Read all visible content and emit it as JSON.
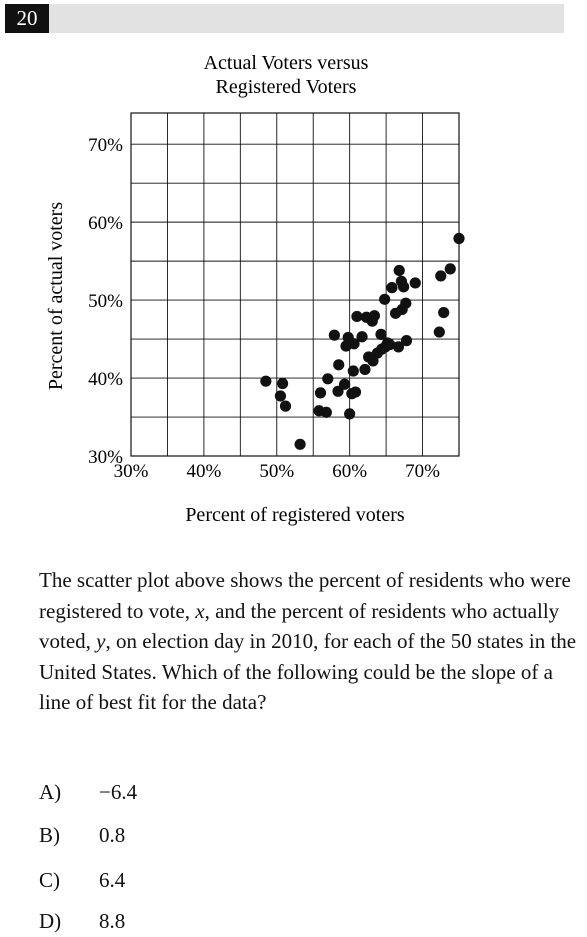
{
  "question_number": "20",
  "chart_data": {
    "type": "scatter",
    "title_lines": [
      "Actual Voters versus",
      "Registered Voters"
    ],
    "xlabel": "Percent of registered voters",
    "ylabel": "Percent of actual voters",
    "xlim": [
      30,
      75
    ],
    "ylim": [
      30,
      74
    ],
    "x_ticks": [
      30,
      40,
      50,
      60,
      70
    ],
    "x_tick_labels": [
      "30%",
      "40%",
      "50%",
      "60%",
      "70%"
    ],
    "y_ticks": [
      30,
      40,
      50,
      60,
      70
    ],
    "y_tick_labels": [
      "30%",
      "40%",
      "50%",
      "60%",
      "70%"
    ],
    "grid": true,
    "points": [
      [
        48.5,
        39.6
      ],
      [
        50.5,
        37.7
      ],
      [
        50.8,
        39.3
      ],
      [
        51.2,
        36.4
      ],
      [
        53.2,
        31.5
      ],
      [
        55.8,
        35.8
      ],
      [
        56.0,
        38.1
      ],
      [
        56.8,
        35.6
      ],
      [
        57.0,
        39.9
      ],
      [
        57.9,
        45.5
      ],
      [
        58.4,
        38.3
      ],
      [
        58.5,
        41.7
      ],
      [
        59.3,
        39.2
      ],
      [
        59.5,
        44.1
      ],
      [
        59.8,
        45.2
      ],
      [
        60.0,
        35.4
      ],
      [
        60.3,
        38.0
      ],
      [
        60.5,
        40.9
      ],
      [
        60.6,
        44.4
      ],
      [
        60.8,
        38.2
      ],
      [
        61.0,
        47.9
      ],
      [
        61.7,
        45.3
      ],
      [
        62.1,
        41.1
      ],
      [
        62.3,
        47.8
      ],
      [
        62.6,
        42.7
      ],
      [
        63.1,
        47.3
      ],
      [
        63.2,
        42.2
      ],
      [
        63.4,
        48.0
      ],
      [
        63.8,
        43.2
      ],
      [
        64.3,
        45.6
      ],
      [
        64.4,
        43.7
      ],
      [
        64.8,
        50.1
      ],
      [
        64.9,
        44.0
      ],
      [
        65.2,
        44.5
      ],
      [
        65.5,
        44.3
      ],
      [
        65.8,
        51.6
      ],
      [
        66.3,
        48.3
      ],
      [
        66.7,
        44.0
      ],
      [
        66.8,
        53.8
      ],
      [
        67.1,
        52.4
      ],
      [
        67.2,
        48.8
      ],
      [
        67.4,
        51.7
      ],
      [
        67.7,
        49.6
      ],
      [
        67.8,
        44.8
      ],
      [
        69.0,
        52.2
      ],
      [
        72.3,
        45.9
      ],
      [
        72.5,
        53.1
      ],
      [
        72.9,
        48.4
      ],
      [
        73.8,
        54.0
      ],
      [
        75.0,
        57.9
      ]
    ]
  },
  "question": {
    "text": "The scatter plot above shows the percent of residents who were registered to vote, x, and the percent of residents who actually voted, y, on election day in 2010, for each of the 50 states in the United States. Which of the following could be the slope of a line of best fit for the data?"
  },
  "choices": [
    {
      "letter": "A)",
      "value": "−6.4"
    },
    {
      "letter": "B)",
      "value": "0.8"
    },
    {
      "letter": "C)",
      "value": "6.4"
    },
    {
      "letter": "D)",
      "value": "8.8"
    }
  ]
}
